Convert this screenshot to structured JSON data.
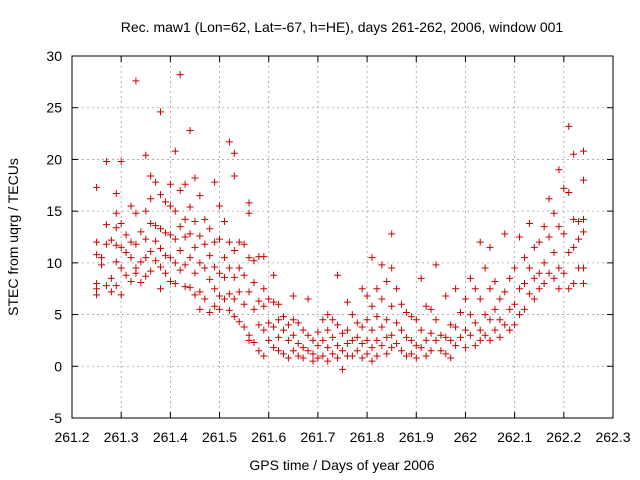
{
  "chart_data": {
    "type": "scatter",
    "title": "Rec. maw1 (Lon=62, Lat=-67, h=HE), days 261-262, 2006, window 001",
    "xlabel": "GPS time / Days of year 2006",
    "ylabel": "STEC from uqrg / TECUs",
    "xlim": [
      261.2,
      262.3
    ],
    "ylim": [
      -5,
      30
    ],
    "xticks": [
      261.2,
      261.3,
      261.4,
      261.5,
      261.6,
      261.7,
      261.8,
      261.9,
      262.0,
      262.1,
      262.2,
      262.3
    ],
    "xtick_labels": [
      "261.2",
      "261.3",
      "261.4",
      "261.5",
      "261.6",
      "261.7",
      "261.8",
      "261.9",
      "262",
      "262.1",
      "262.2",
      "262.3"
    ],
    "yticks": [
      -5,
      0,
      5,
      10,
      15,
      20,
      25,
      30
    ],
    "ytick_labels": [
      "-5",
      "0",
      "5",
      "10",
      "15",
      "20",
      "25",
      "30"
    ],
    "grid": true,
    "marker": "+",
    "color": "#cc0000",
    "points": [
      [
        261.25,
        17.3
      ],
      [
        261.25,
        12.0
      ],
      [
        261.25,
        10.8
      ],
      [
        261.25,
        8.0
      ],
      [
        261.25,
        7.5
      ],
      [
        261.25,
        6.9
      ],
      [
        261.26,
        10.5
      ],
      [
        261.26,
        9.8
      ],
      [
        261.27,
        19.8
      ],
      [
        261.27,
        13.7
      ],
      [
        261.27,
        11.8
      ],
      [
        261.27,
        7.8
      ],
      [
        261.28,
        12.2
      ],
      [
        261.28,
        8.5
      ],
      [
        261.28,
        7.2
      ],
      [
        261.29,
        16.7
      ],
      [
        261.29,
        14.8
      ],
      [
        261.29,
        13.4
      ],
      [
        261.29,
        11.7
      ],
      [
        261.29,
        10.1
      ],
      [
        261.29,
        7.8
      ],
      [
        261.3,
        19.8
      ],
      [
        261.3,
        13.8
      ],
      [
        261.3,
        11.5
      ],
      [
        261.3,
        9.5
      ],
      [
        261.3,
        6.9
      ],
      [
        261.31,
        12.7
      ],
      [
        261.31,
        11.0
      ],
      [
        261.31,
        8.8
      ],
      [
        261.32,
        15.5
      ],
      [
        261.32,
        12.0
      ],
      [
        261.32,
        10.5
      ],
      [
        261.32,
        8.2
      ],
      [
        261.33,
        27.6
      ],
      [
        261.33,
        14.8
      ],
      [
        261.33,
        11.8
      ],
      [
        261.33,
        9.5
      ],
      [
        261.33,
        9.0
      ],
      [
        261.34,
        13.0
      ],
      [
        261.34,
        10.1
      ],
      [
        261.34,
        8.1
      ],
      [
        261.35,
        20.4
      ],
      [
        261.35,
        15.0
      ],
      [
        261.35,
        12.3
      ],
      [
        261.35,
        10.5
      ],
      [
        261.35,
        8.7
      ],
      [
        261.36,
        18.4
      ],
      [
        261.36,
        16.2
      ],
      [
        261.36,
        13.8
      ],
      [
        261.36,
        11.1
      ],
      [
        261.36,
        9.2
      ],
      [
        261.37,
        17.8
      ],
      [
        261.37,
        13.6
      ],
      [
        261.37,
        12.1
      ],
      [
        261.37,
        10.2
      ],
      [
        261.38,
        24.6
      ],
      [
        261.38,
        16.6
      ],
      [
        261.38,
        13.3
      ],
      [
        261.38,
        11.4
      ],
      [
        261.38,
        9.6
      ],
      [
        261.38,
        7.5
      ],
      [
        261.39,
        15.9
      ],
      [
        261.39,
        12.9
      ],
      [
        261.39,
        10.7
      ],
      [
        261.39,
        9.0
      ],
      [
        261.4,
        17.6
      ],
      [
        261.4,
        15.5
      ],
      [
        261.4,
        12.7
      ],
      [
        261.4,
        10.5
      ],
      [
        261.4,
        8.2
      ],
      [
        261.41,
        20.8
      ],
      [
        261.41,
        15.0
      ],
      [
        261.41,
        12.3
      ],
      [
        261.41,
        10.0
      ],
      [
        261.41,
        8.0
      ],
      [
        261.42,
        28.2
      ],
      [
        261.42,
        17.0
      ],
      [
        261.42,
        13.5
      ],
      [
        261.42,
        11.2
      ],
      [
        261.42,
        9.3
      ],
      [
        261.43,
        17.6
      ],
      [
        261.43,
        14.2
      ],
      [
        261.43,
        12.5
      ],
      [
        261.43,
        9.8
      ],
      [
        261.43,
        7.7
      ],
      [
        261.44,
        22.8
      ],
      [
        261.44,
        15.4
      ],
      [
        261.44,
        12.8
      ],
      [
        261.44,
        10.5
      ],
      [
        261.44,
        7.6
      ],
      [
        261.45,
        18.2
      ],
      [
        261.45,
        14.0
      ],
      [
        261.45,
        11.5
      ],
      [
        261.45,
        9.0
      ],
      [
        261.45,
        6.9
      ],
      [
        261.46,
        16.5
      ],
      [
        261.46,
        12.6
      ],
      [
        261.46,
        10.0
      ],
      [
        261.46,
        7.2
      ],
      [
        261.46,
        5.5
      ],
      [
        261.47,
        14.2
      ],
      [
        261.47,
        11.8
      ],
      [
        261.47,
        9.5
      ],
      [
        261.47,
        6.5
      ],
      [
        261.48,
        13.3
      ],
      [
        261.48,
        10.7
      ],
      [
        261.48,
        8.4
      ],
      [
        261.48,
        5.2
      ],
      [
        261.49,
        17.8
      ],
      [
        261.49,
        12.0
      ],
      [
        261.49,
        9.6
      ],
      [
        261.49,
        7.5
      ],
      [
        261.49,
        5.8
      ],
      [
        261.5,
        15.5
      ],
      [
        261.5,
        12.3
      ],
      [
        261.5,
        9.0
      ],
      [
        261.5,
        6.8
      ],
      [
        261.5,
        5.5
      ],
      [
        261.51,
        14.0
      ],
      [
        261.51,
        10.5
      ],
      [
        261.51,
        8.6
      ],
      [
        261.51,
        6.5
      ],
      [
        261.52,
        21.7
      ],
      [
        261.52,
        12.0
      ],
      [
        261.52,
        9.5
      ],
      [
        261.52,
        7.0
      ],
      [
        261.52,
        5.4
      ],
      [
        261.53,
        20.6
      ],
      [
        261.53,
        18.4
      ],
      [
        261.53,
        11.2
      ],
      [
        261.53,
        8.6
      ],
      [
        261.53,
        6.5
      ],
      [
        261.53,
        4.8
      ],
      [
        261.54,
        12.0
      ],
      [
        261.54,
        9.5
      ],
      [
        261.54,
        7.2
      ],
      [
        261.54,
        4.3
      ],
      [
        261.55,
        11.8
      ],
      [
        261.55,
        8.8
      ],
      [
        261.55,
        6.0
      ],
      [
        261.55,
        3.8
      ],
      [
        261.56,
        15.8
      ],
      [
        261.56,
        14.8
      ],
      [
        261.56,
        10.5
      ],
      [
        261.56,
        7.2
      ],
      [
        261.56,
        3.0
      ],
      [
        261.56,
        2.5
      ],
      [
        261.57,
        10.2
      ],
      [
        261.57,
        8.1
      ],
      [
        261.57,
        5.5
      ],
      [
        261.57,
        2.3
      ],
      [
        261.58,
        10.6
      ],
      [
        261.58,
        6.3
      ],
      [
        261.58,
        4.0
      ],
      [
        261.58,
        1.5
      ],
      [
        261.59,
        10.6
      ],
      [
        261.59,
        7.5
      ],
      [
        261.59,
        5.8
      ],
      [
        261.59,
        3.5
      ],
      [
        261.59,
        1.0
      ],
      [
        261.6,
        6.5
      ],
      [
        261.6,
        4.2
      ],
      [
        261.6,
        2.5
      ],
      [
        261.61,
        8.8
      ],
      [
        261.61,
        6.2
      ],
      [
        261.61,
        3.8
      ],
      [
        261.61,
        1.8
      ],
      [
        261.62,
        6.0
      ],
      [
        261.62,
        4.5
      ],
      [
        261.62,
        2.8
      ],
      [
        261.62,
        1.5
      ],
      [
        261.63,
        4.8
      ],
      [
        261.63,
        3.5
      ],
      [
        261.63,
        1.2
      ],
      [
        261.64,
        4.0
      ],
      [
        261.64,
        2.5
      ],
      [
        261.64,
        0.8
      ],
      [
        261.65,
        6.8
      ],
      [
        261.65,
        4.5
      ],
      [
        261.65,
        3.0
      ],
      [
        261.65,
        1.5
      ],
      [
        261.66,
        4.2
      ],
      [
        261.66,
        2.2
      ],
      [
        261.66,
        1.0
      ],
      [
        261.67,
        3.5
      ],
      [
        261.67,
        1.8
      ],
      [
        261.67,
        0.8
      ],
      [
        261.68,
        6.5
      ],
      [
        261.68,
        3.0
      ],
      [
        261.68,
        1.5
      ],
      [
        261.69,
        2.5
      ],
      [
        261.69,
        1.2
      ],
      [
        261.69,
        0.5
      ],
      [
        261.7,
        3.3
      ],
      [
        261.7,
        2.0
      ],
      [
        261.7,
        0.8
      ],
      [
        261.71,
        4.5
      ],
      [
        261.71,
        2.5
      ],
      [
        261.71,
        1.0
      ],
      [
        261.72,
        5.0
      ],
      [
        261.72,
        3.5
      ],
      [
        261.72,
        1.8
      ],
      [
        261.72,
        0.5
      ],
      [
        261.73,
        4.5
      ],
      [
        261.73,
        2.8
      ],
      [
        261.73,
        1.2
      ],
      [
        261.74,
        8.8
      ],
      [
        261.74,
        4.0
      ],
      [
        261.74,
        2.0
      ],
      [
        261.74,
        0.8
      ],
      [
        261.75,
        3.2
      ],
      [
        261.75,
        1.5
      ],
      [
        261.75,
        -0.3
      ],
      [
        261.76,
        6.2
      ],
      [
        261.76,
        3.5
      ],
      [
        261.76,
        2.2
      ],
      [
        261.76,
        1.0
      ],
      [
        261.77,
        5.0
      ],
      [
        261.77,
        2.5
      ],
      [
        261.77,
        1.0
      ],
      [
        261.78,
        4.2
      ],
      [
        261.78,
        2.8
      ],
      [
        261.78,
        1.5
      ],
      [
        261.79,
        7.5
      ],
      [
        261.79,
        3.8
      ],
      [
        261.79,
        2.2
      ],
      [
        261.79,
        0.8
      ],
      [
        261.8,
        6.8
      ],
      [
        261.8,
        4.5
      ],
      [
        261.8,
        2.5
      ],
      [
        261.8,
        1.2
      ],
      [
        261.81,
        10.5
      ],
      [
        261.81,
        5.8
      ],
      [
        261.81,
        3.5
      ],
      [
        261.81,
        1.8
      ],
      [
        261.81,
        0.5
      ],
      [
        261.82,
        7.5
      ],
      [
        261.82,
        4.8
      ],
      [
        261.82,
        2.5
      ],
      [
        261.82,
        1.0
      ],
      [
        261.83,
        9.8
      ],
      [
        261.83,
        6.5
      ],
      [
        261.83,
        3.8
      ],
      [
        261.83,
        2.0
      ],
      [
        261.84,
        8.2
      ],
      [
        261.84,
        4.5
      ],
      [
        261.84,
        2.8
      ],
      [
        261.84,
        1.2
      ],
      [
        261.85,
        12.8
      ],
      [
        261.85,
        9.5
      ],
      [
        261.85,
        5.8
      ],
      [
        261.85,
        3.0
      ],
      [
        261.85,
        1.8
      ],
      [
        261.86,
        7.5
      ],
      [
        261.86,
        4.2
      ],
      [
        261.86,
        2.2
      ],
      [
        261.87,
        6.0
      ],
      [
        261.87,
        3.5
      ],
      [
        261.87,
        1.5
      ],
      [
        261.88,
        5.2
      ],
      [
        261.88,
        2.8
      ],
      [
        261.88,
        1.0
      ],
      [
        261.89,
        4.8
      ],
      [
        261.89,
        2.5
      ],
      [
        261.89,
        1.2
      ],
      [
        261.9,
        4.5
      ],
      [
        261.9,
        2.0
      ],
      [
        261.9,
        0.8
      ],
      [
        261.91,
        8.5
      ],
      [
        261.91,
        3.5
      ],
      [
        261.91,
        1.8
      ],
      [
        261.92,
        5.8
      ],
      [
        261.92,
        2.5
      ],
      [
        261.92,
        1.0
      ],
      [
        261.93,
        5.5
      ],
      [
        261.93,
        3.2
      ],
      [
        261.93,
        1.5
      ],
      [
        261.94,
        9.8
      ],
      [
        261.94,
        4.5
      ],
      [
        261.94,
        2.5
      ],
      [
        261.95,
        3.0
      ],
      [
        261.95,
        1.5
      ],
      [
        261.96,
        6.8
      ],
      [
        261.96,
        2.8
      ],
      [
        261.96,
        1.2
      ],
      [
        261.97,
        4.0
      ],
      [
        261.97,
        2.5
      ],
      [
        261.97,
        0.8
      ],
      [
        261.98,
        7.5
      ],
      [
        261.98,
        3.8
      ],
      [
        261.98,
        2.0
      ],
      [
        261.99,
        5.2
      ],
      [
        261.99,
        2.8
      ],
      [
        262.0,
        6.5
      ],
      [
        262.0,
        3.5
      ],
      [
        262.0,
        1.8
      ],
      [
        262.01,
        8.5
      ],
      [
        262.01,
        5.0
      ],
      [
        262.01,
        3.0
      ],
      [
        262.02,
        7.5
      ],
      [
        262.02,
        4.2
      ],
      [
        262.02,
        2.0
      ],
      [
        262.03,
        12.0
      ],
      [
        262.03,
        6.5
      ],
      [
        262.03,
        3.5
      ],
      [
        262.03,
        2.5
      ],
      [
        262.04,
        9.5
      ],
      [
        262.04,
        5.0
      ],
      [
        262.04,
        3.0
      ],
      [
        262.05,
        11.5
      ],
      [
        262.05,
        7.5
      ],
      [
        262.05,
        4.5
      ],
      [
        262.05,
        2.5
      ],
      [
        262.06,
        8.2
      ],
      [
        262.06,
        5.5
      ],
      [
        262.06,
        3.5
      ],
      [
        262.07,
        6.5
      ],
      [
        262.07,
        4.5
      ],
      [
        262.07,
        2.8
      ],
      [
        262.08,
        12.8
      ],
      [
        262.08,
        7.2
      ],
      [
        262.08,
        4.0
      ],
      [
        262.09,
        8.5
      ],
      [
        262.09,
        5.5
      ],
      [
        262.09,
        3.5
      ],
      [
        262.1,
        9.5
      ],
      [
        262.1,
        6.0
      ],
      [
        262.1,
        4.0
      ],
      [
        262.11,
        12.5
      ],
      [
        262.11,
        7.5
      ],
      [
        262.11,
        5.0
      ],
      [
        262.12,
        10.5
      ],
      [
        262.12,
        8.0
      ],
      [
        262.12,
        5.5
      ],
      [
        262.13,
        13.8
      ],
      [
        262.13,
        9.5
      ],
      [
        262.13,
        7.0
      ],
      [
        262.14,
        11.5
      ],
      [
        262.14,
        8.5
      ],
      [
        262.14,
        6.5
      ],
      [
        262.15,
        12.0
      ],
      [
        262.15,
        9.0
      ],
      [
        262.15,
        7.5
      ],
      [
        262.16,
        13.5
      ],
      [
        262.16,
        10.0
      ],
      [
        262.16,
        8.0
      ],
      [
        262.17,
        16.2
      ],
      [
        262.17,
        12.5
      ],
      [
        262.17,
        9.0
      ],
      [
        262.18,
        14.8
      ],
      [
        262.18,
        11.0
      ],
      [
        262.18,
        8.5
      ],
      [
        262.19,
        19.0
      ],
      [
        262.19,
        13.5
      ],
      [
        262.19,
        9.5
      ],
      [
        262.19,
        7.5
      ],
      [
        262.2,
        17.2
      ],
      [
        262.2,
        12.8
      ],
      [
        262.2,
        9.0
      ],
      [
        262.21,
        23.2
      ],
      [
        262.21,
        16.8
      ],
      [
        262.21,
        11.0
      ],
      [
        262.21,
        7.5
      ],
      [
        262.22,
        20.5
      ],
      [
        262.22,
        14.2
      ],
      [
        262.22,
        11.5
      ],
      [
        262.22,
        8.0
      ],
      [
        262.23,
        14.0
      ],
      [
        262.23,
        12.3
      ],
      [
        262.23,
        9.5
      ],
      [
        262.24,
        20.8
      ],
      [
        262.24,
        18.0
      ],
      [
        262.24,
        14.2
      ],
      [
        262.24,
        13.0
      ],
      [
        262.24,
        9.5
      ],
      [
        262.24,
        8.0
      ]
    ]
  }
}
